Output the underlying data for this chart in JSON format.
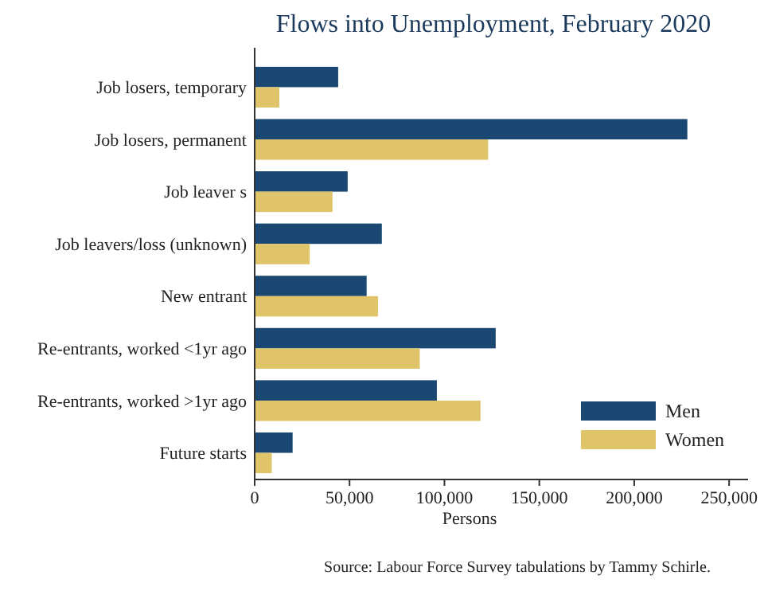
{
  "chart_data": {
    "type": "bar",
    "orientation": "horizontal",
    "title": "Flows into Unemployment, February 2020",
    "xlabel": "Persons",
    "annotations": [
      "Source: Labour Force Survey tabulations by Tammy Schirle."
    ],
    "categories": [
      "Job losers, temporary",
      "Job losers, permanent",
      "Job leaver s",
      "Job leavers/loss (unknown)",
      "New entrant",
      "Re-entrants, worked <1yr ago",
      "Re-entrants, worked >1yr ago",
      "Future starts"
    ],
    "series": [
      {
        "name": "Men",
        "color": "#1b4872",
        "values": [
          44000,
          228000,
          49000,
          67000,
          59000,
          127000,
          96000,
          20000
        ]
      },
      {
        "name": "Women",
        "color": "#dfc46a",
        "values": [
          13000,
          123000,
          41000,
          29000,
          65000,
          87000,
          119000,
          9000
        ]
      }
    ],
    "xlim": [
      0,
      260000
    ],
    "xticks": [
      {
        "value": 0,
        "label": "0"
      },
      {
        "value": 50000,
        "label": "50,000"
      },
      {
        "value": 100000,
        "label": "100,000"
      },
      {
        "value": 150000,
        "label": "150,000"
      },
      {
        "value": 200000,
        "label": "200,000"
      },
      {
        "value": 250000,
        "label": "250,000"
      }
    ],
    "grid": false,
    "legend": "bottom right"
  }
}
